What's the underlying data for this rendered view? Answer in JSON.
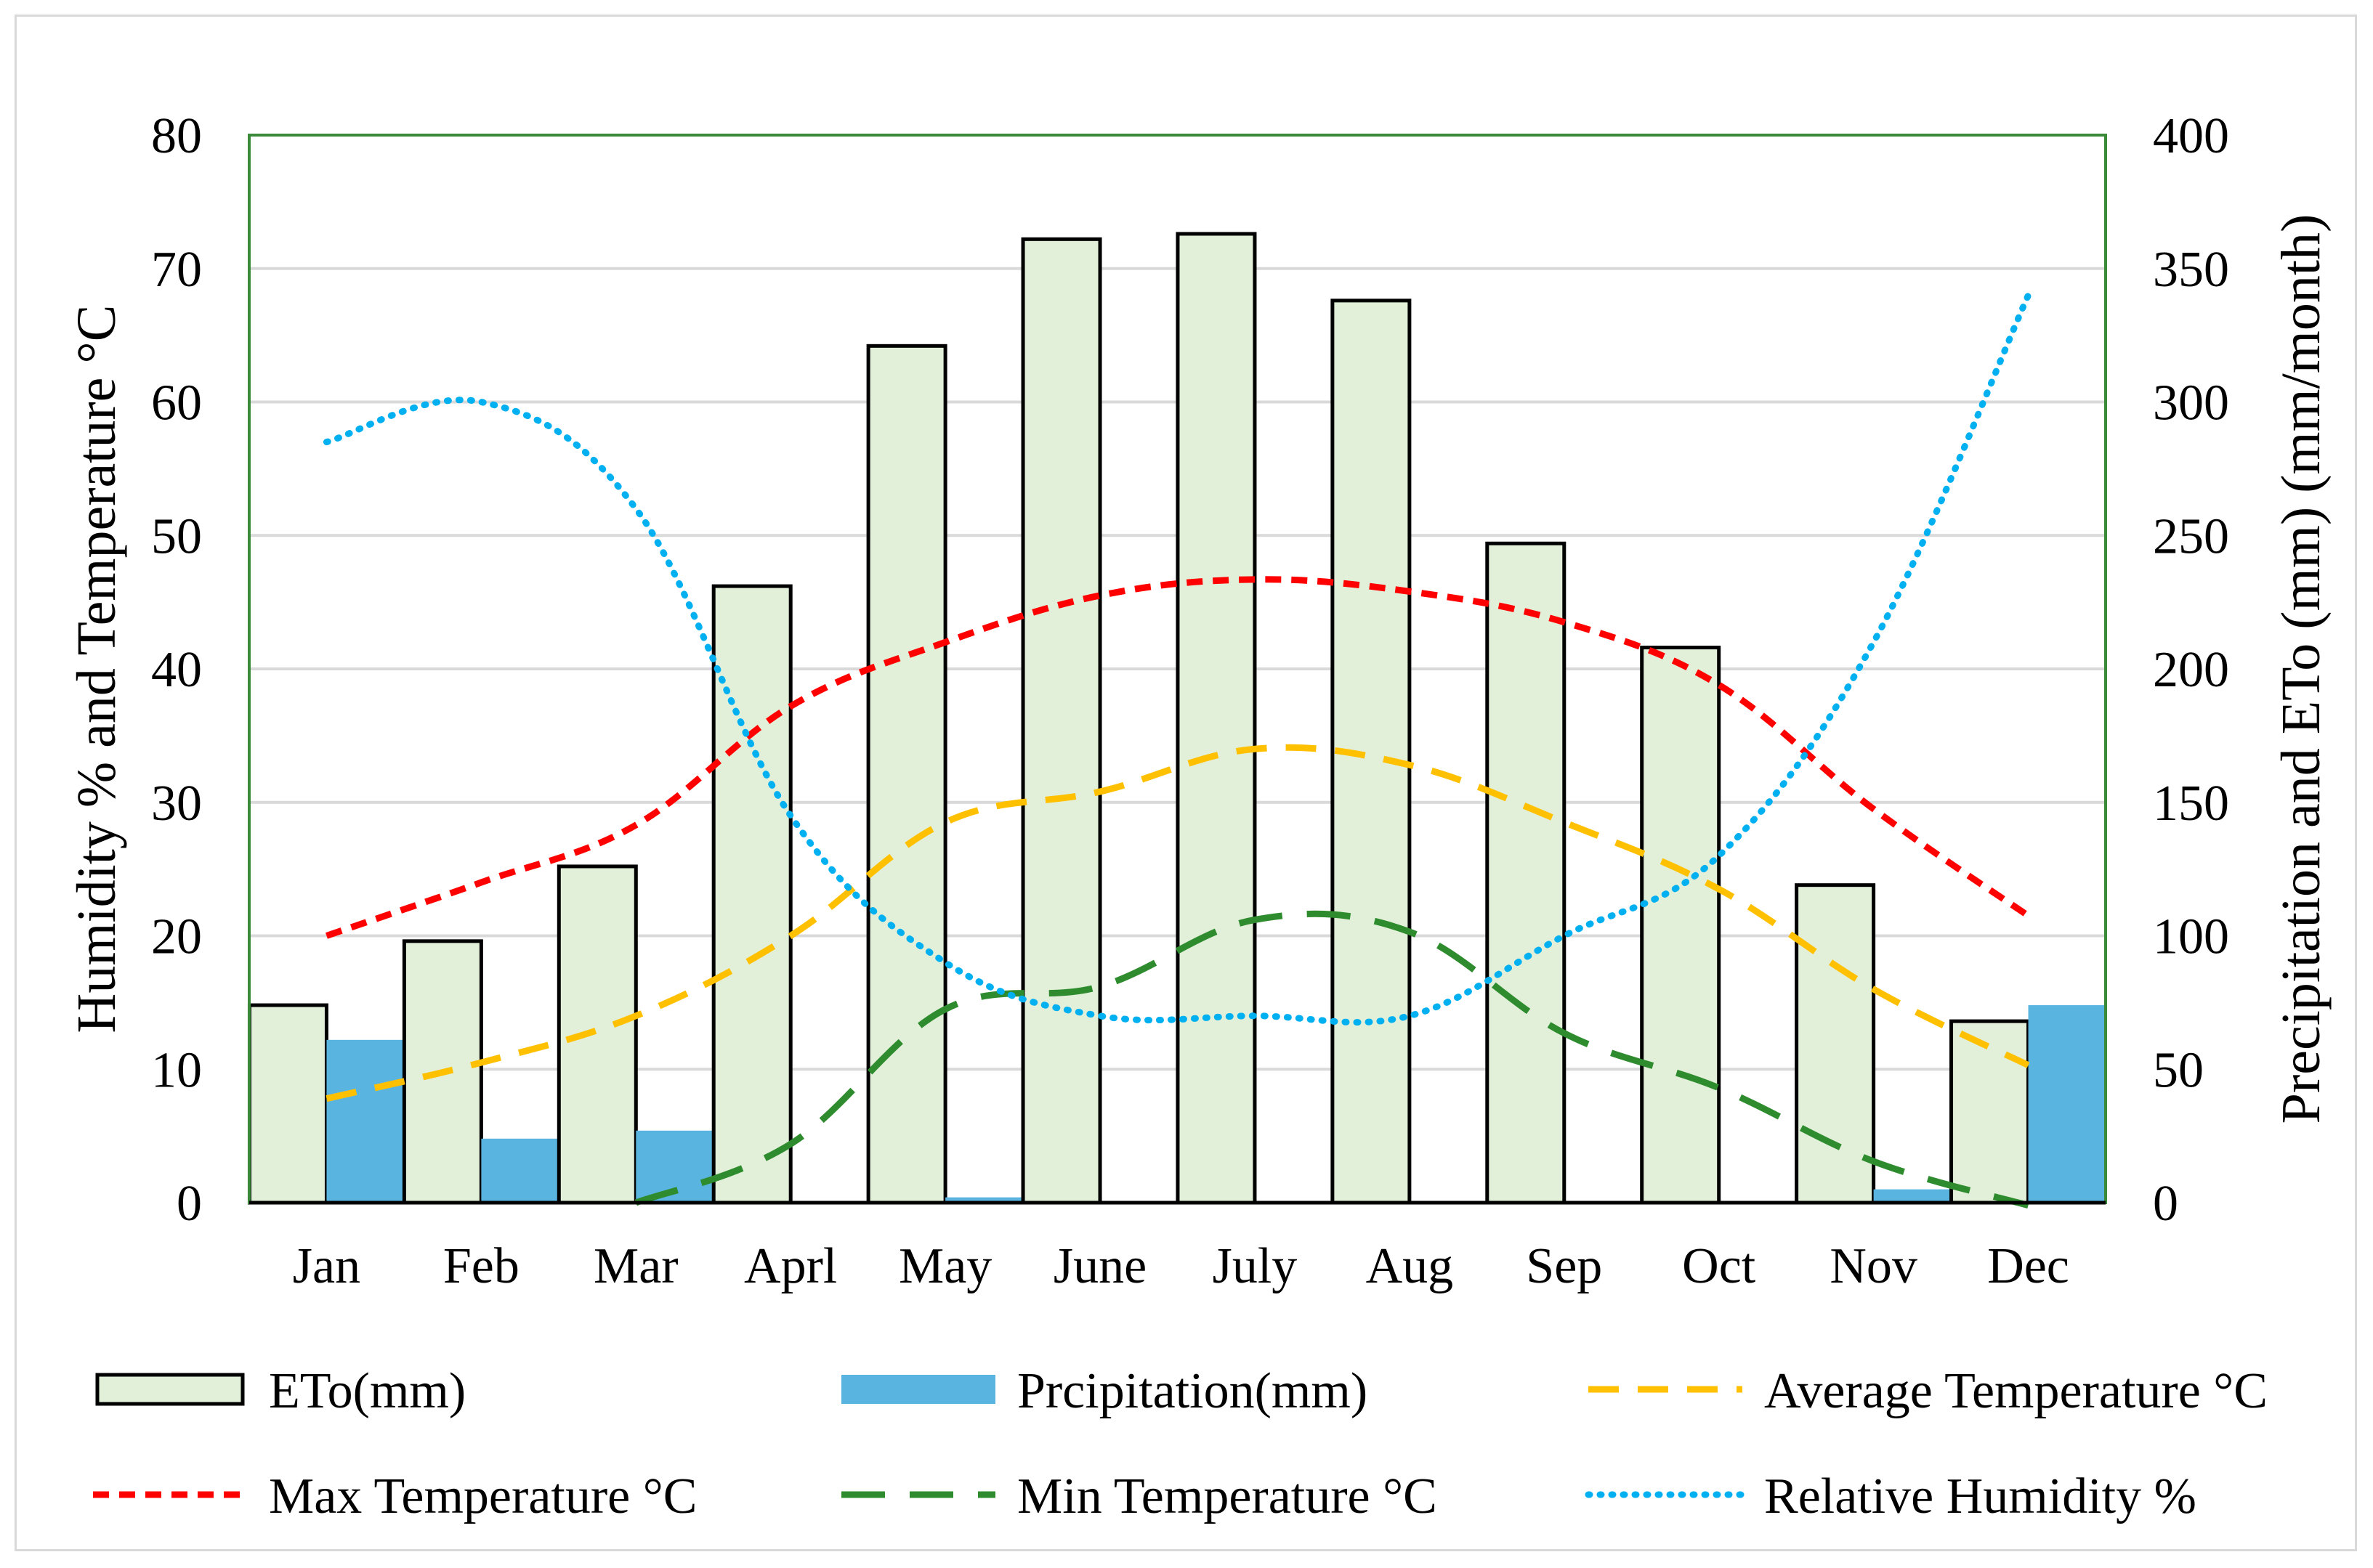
{
  "chart_data": {
    "type": "bar",
    "categories": [
      "Jan",
      "Feb",
      "Mar",
      "Aprl",
      "May",
      "June",
      "July",
      "Aug",
      "Sep",
      "Oct",
      "Nov",
      "Dec"
    ],
    "left_axis": {
      "label": "Humidity % and Temperature °C",
      "ylim": [
        0,
        80
      ],
      "ticks": [
        "0",
        "10",
        "20",
        "30",
        "40",
        "50",
        "60",
        "70",
        "80"
      ]
    },
    "right_axis": {
      "label": "Precipitation and ETo (mm) (mm/month)",
      "ylim": [
        0,
        400
      ],
      "ticks": [
        "0",
        "50",
        "100",
        "150",
        "200",
        "250",
        "300",
        "350",
        "400"
      ]
    },
    "bar_series": [
      {
        "name": "ETo(mm)",
        "axis": "right",
        "color": "#e2f0d9",
        "stroke": "#000000",
        "values": [
          74,
          98,
          126,
          231,
          321,
          361,
          363,
          338,
          247,
          208,
          119,
          68
        ]
      },
      {
        "name": "Prcipitation(mm)",
        "axis": "right",
        "color": "#5ab4e0",
        "values": [
          61,
          24,
          27,
          0,
          2,
          0,
          0,
          0,
          0,
          0,
          5,
          74
        ]
      }
    ],
    "line_series": [
      {
        "name": "Average Temperature °C",
        "axis": "left",
        "color": "#ffc000",
        "style": "dash",
        "values": [
          7.8,
          10.5,
          14,
          20,
          28.5,
          30.8,
          34,
          32.8,
          28.5,
          23.5,
          16,
          10.3
        ]
      },
      {
        "name": "Max Temperature °C",
        "axis": "left",
        "color": "#ff0000",
        "style": "short-dash",
        "values": [
          20,
          24,
          28.3,
          37.2,
          42,
          45.5,
          46.7,
          45.8,
          43.5,
          38.8,
          29.5,
          21.5
        ]
      },
      {
        "name": "Min Temperature °C",
        "axis": "left",
        "color": "#2e8b2e",
        "style": "long-dash",
        "values": [
          null,
          null,
          0,
          4.4,
          14.5,
          16.2,
          21.2,
          20.3,
          12.7,
          8.6,
          3.1,
          -0.2
        ]
      },
      {
        "name": "Relative Humidity %",
        "axis": "left",
        "color": "#00b0f0",
        "style": "dot",
        "values": [
          57,
          60,
          52,
          29,
          18,
          14,
          14,
          14,
          20,
          26,
          42,
          68
        ]
      }
    ],
    "legend": [
      {
        "name": "ETo(mm)"
      },
      {
        "name": "Prcipitation(mm)"
      },
      {
        "name": "Average Temperature °C"
      },
      {
        "name": "Max Temperature °C"
      },
      {
        "name": "Min Temperature °C"
      },
      {
        "name": "Relative Humidity %"
      }
    ],
    "gridlines": true,
    "legend_position": "bottom"
  }
}
